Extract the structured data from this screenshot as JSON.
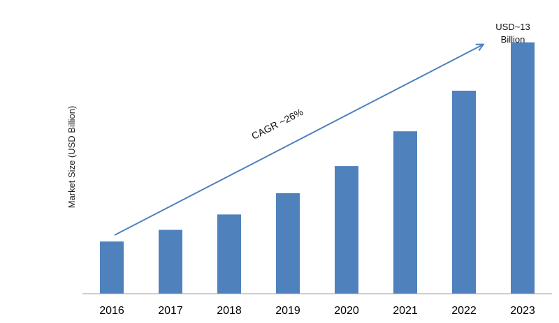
{
  "chart_data": {
    "type": "bar",
    "title": "",
    "xlabel": "",
    "ylabel": "Market Size (USD Billion)",
    "categories": [
      "2016",
      "2017",
      "2018",
      "2019",
      "2020",
      "2021",
      "2022",
      "2023"
    ],
    "values": [
      2.7,
      3.3,
      4.1,
      5.2,
      6.6,
      8.4,
      10.5,
      13
    ],
    "ylim": [
      0,
      14
    ],
    "grid": false,
    "legend": "none",
    "bar_color": "#4f81bd",
    "arrow_color": "#4f81bd",
    "annotations": {
      "cagr": "CAGR ~26%",
      "end_value_line1": "USD~13",
      "end_value_line2": "Billion"
    }
  }
}
